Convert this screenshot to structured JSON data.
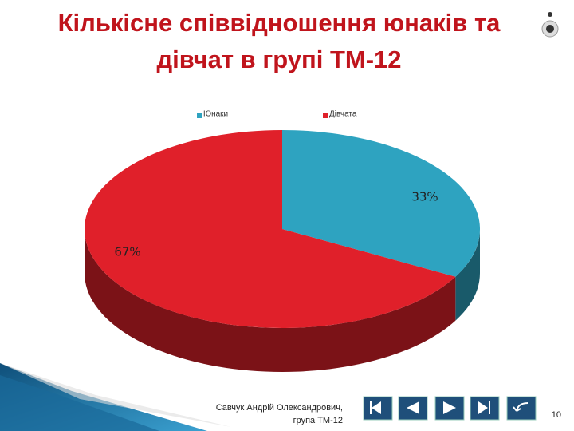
{
  "chart_data": {
    "type": "pie",
    "title": "Кількісне співвідношення юнаків та дівчат в групі ТМ-12",
    "categories": [
      "Юнаки",
      "Дівчата"
    ],
    "values": [
      33,
      67
    ],
    "value_labels": [
      "33%",
      "67%"
    ],
    "colors": [
      "#2ea3c0",
      "#e0202a"
    ],
    "legend": "top",
    "three_d": true
  },
  "footer": {
    "author": "Савчук Андрій Олександрович,",
    "group": "група ТМ-12"
  },
  "slide_number": 10
}
